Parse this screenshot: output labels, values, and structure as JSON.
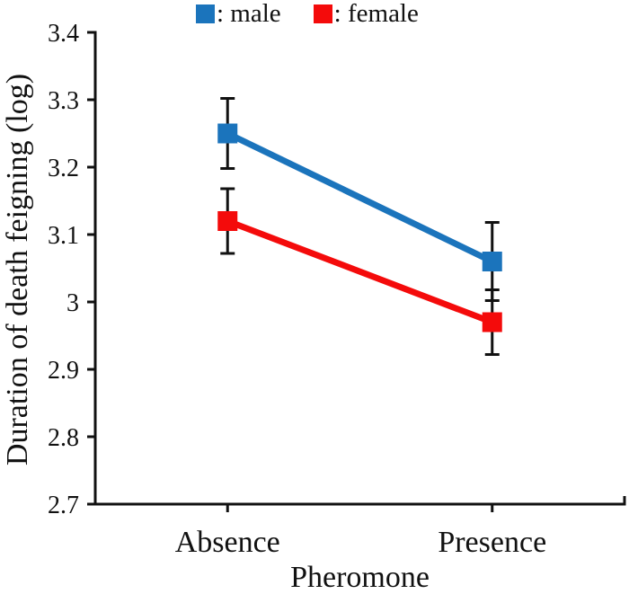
{
  "figure": {
    "background": "#ffffff",
    "text_color": "#111111"
  },
  "legend": {
    "items": [
      {
        "label": ": male",
        "color": "#1b74bc",
        "swatch": "square"
      },
      {
        "label": ": female",
        "color": "#f40b0b",
        "swatch": "square"
      }
    ]
  },
  "chart_data": {
    "type": "line",
    "title": "",
    "xlabel": "Pheromone",
    "ylabel": "Duration of death feigning (log)",
    "categories": [
      "Absence",
      "Presence"
    ],
    "series": [
      {
        "name": "male",
        "color": "#1b74bc",
        "values": [
          3.25,
          3.06
        ],
        "error": [
          0.052,
          0.058
        ]
      },
      {
        "name": "female",
        "color": "#f40b0b",
        "values": [
          3.12,
          2.97
        ],
        "error": [
          0.048,
          0.048
        ]
      }
    ],
    "ylim": [
      2.7,
      3.4
    ],
    "yticks": [
      3.4,
      3.3,
      3.2,
      3.1,
      3.0,
      2.9,
      2.8,
      2.7
    ],
    "ytick_labels": [
      "3.4",
      "3.3",
      "3.2",
      "3.1",
      "3",
      "2.9",
      "2.8",
      "2.7"
    ],
    "grid": false,
    "legend_position": "top",
    "marker": "square",
    "marker_size": 22,
    "line_width": 7,
    "error_bars": true,
    "error_bar_color": "#111111",
    "axis_color": "#111111"
  }
}
